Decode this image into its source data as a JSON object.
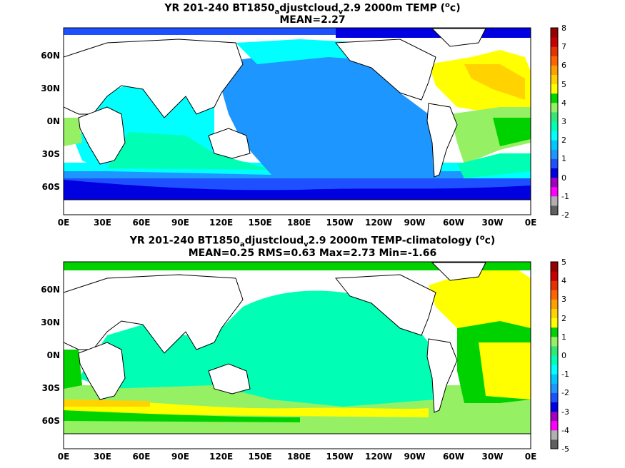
{
  "panels": [
    {
      "title_prefix": "YR 201-240 BT1850",
      "title_sub": "a",
      "title_mid": "djustcloud",
      "title_sub2": "v",
      "title_suffix": "2.9 2000m TEMP (",
      "title_sup": "o",
      "title_end": "c)",
      "stats": "MEAN=2.27",
      "colorbar_labels": [
        "8",
        "7",
        "6",
        "5",
        "4",
        "3",
        "2",
        "1",
        "0",
        "-1",
        "-2"
      ]
    },
    {
      "title_prefix": "YR 201-240 BT1850",
      "title_sub": "a",
      "title_mid": "djustcloud",
      "title_sub2": "v",
      "title_suffix": "2.9 2000m TEMP-climatology (",
      "title_sup": "o",
      "title_end": "c)",
      "stats": "MEAN=0.25   RMS=0.63   Max=2.73   Min=-1.66",
      "colorbar_labels": [
        "5",
        "4",
        "3",
        "2",
        "1",
        "0",
        "-1",
        "-2",
        "-3",
        "-4",
        "-5"
      ]
    }
  ],
  "axes": {
    "x_ticks": [
      "0E",
      "30E",
      "60E",
      "90E",
      "120E",
      "150E",
      "180E",
      "150W",
      "120W",
      "90W",
      "60W",
      "30W",
      "0E"
    ],
    "y_ticks": [
      "60N",
      "30N",
      "0N",
      "30S",
      "60S"
    ]
  },
  "colors": {
    "land": "#ffffff",
    "scale": [
      "#606060",
      "#b0b0b0",
      "#ff00ff",
      "#a000c0",
      "#0000e0",
      "#1e50ff",
      "#1e96ff",
      "#00c8ff",
      "#00ffff",
      "#00ffb4",
      "#32e678",
      "#96f064",
      "#00d200",
      "#ffff00",
      "#ffd200",
      "#ffa000",
      "#ff6400",
      "#e63200",
      "#c80000",
      "#960000"
    ]
  }
}
